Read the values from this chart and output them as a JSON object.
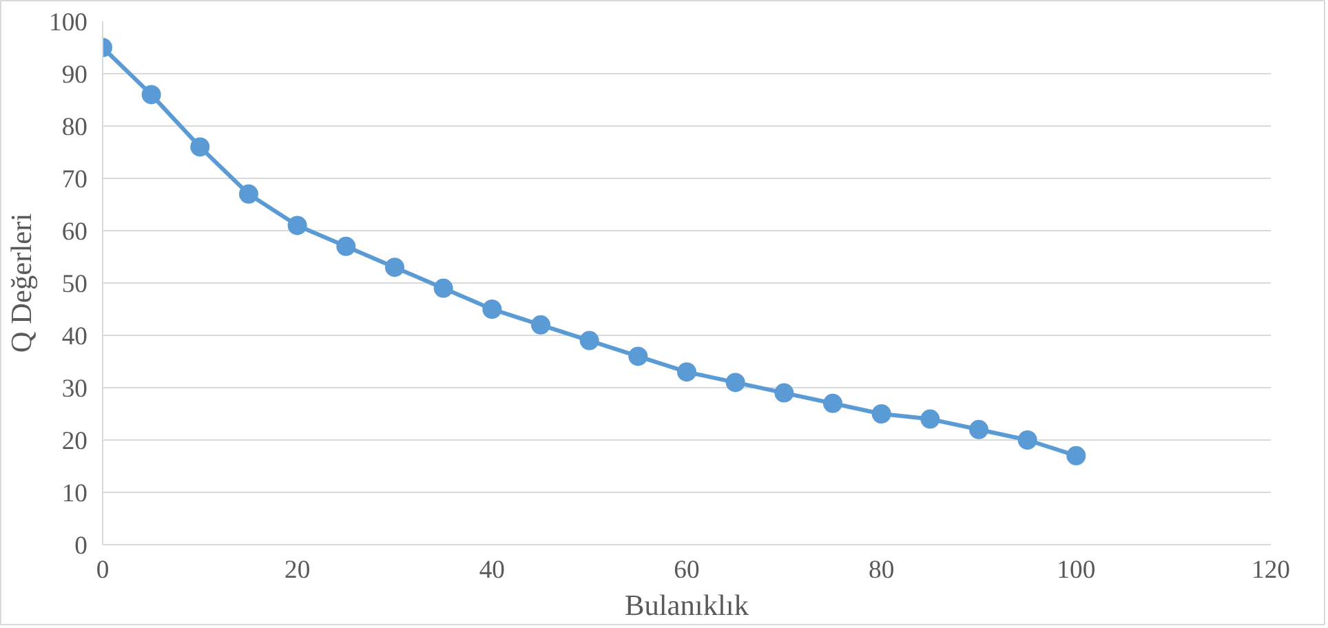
{
  "chart_data": {
    "type": "line",
    "xlabel": "Bulanıklık",
    "ylabel": "Q Değerleri",
    "x": [
      0,
      5,
      10,
      15,
      20,
      25,
      30,
      35,
      40,
      45,
      50,
      55,
      60,
      65,
      70,
      75,
      80,
      85,
      90,
      95,
      100
    ],
    "series": [
      {
        "color": "#5b9bd5",
        "values": [
          95,
          86,
          76,
          67,
          61,
          57,
          53,
          49,
          45,
          42,
          39,
          36,
          33,
          31,
          29,
          27,
          25,
          24,
          22,
          20,
          17
        ]
      }
    ],
    "xlim": [
      0,
      120
    ],
    "xticks": [
      0,
      20,
      40,
      60,
      80,
      100,
      120
    ],
    "ylim": [
      0,
      100
    ],
    "yticks": [
      0,
      10,
      20,
      30,
      40,
      50,
      60,
      70,
      80,
      90,
      100
    ],
    "grid": "y",
    "marker": "circle",
    "line_style": "solid"
  }
}
